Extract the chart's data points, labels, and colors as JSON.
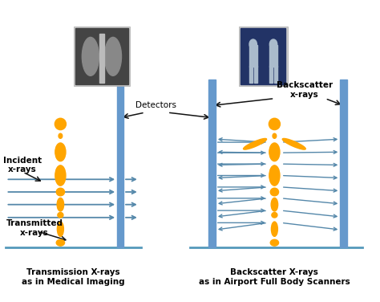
{
  "bg_color": "#ffffff",
  "orange": "#FFA500",
  "blue_panel": "#6699CC",
  "blue_ray": "#5588AA",
  "arrow_color": "#111111",
  "floor_color": "#5599BB",
  "title_left": "Transmission X-rays\nas in Medical Imaging",
  "title_right": "Backscatter X-rays\nas in Airport Full Body Scanners",
  "label_incident": "Incident\nx-rays",
  "label_transmitted": "Transmitted\nx-rays",
  "label_detectors": "Detectors",
  "label_backscatter": "Backscatter\nx-rays",
  "figsize": [
    4.74,
    3.76
  ],
  "dpi": 100,
  "xlim": [
    0,
    10
  ],
  "ylim": [
    0,
    8.5
  ]
}
